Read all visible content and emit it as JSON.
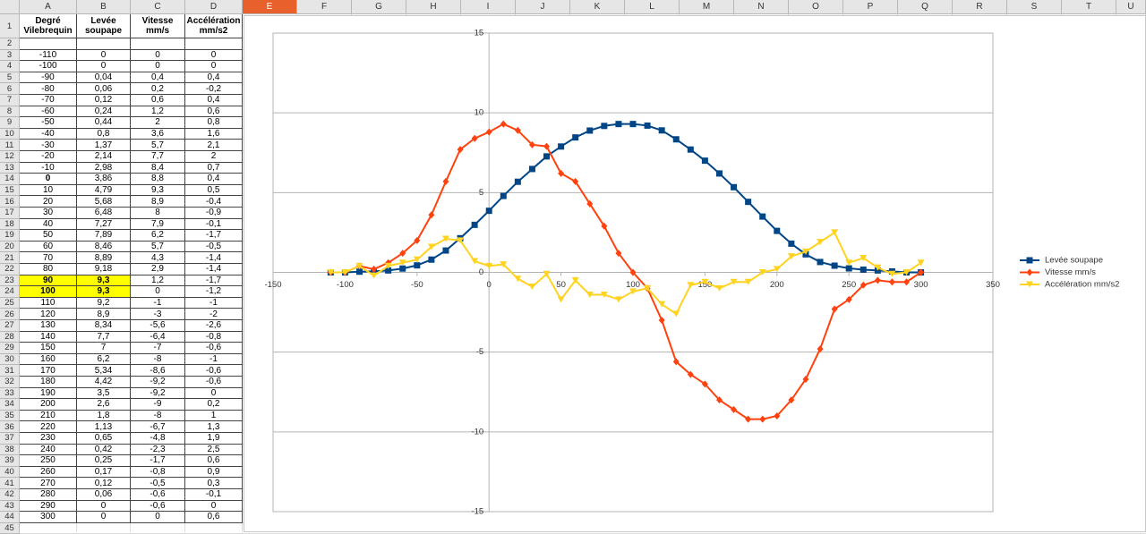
{
  "table": {
    "columns": [
      "A",
      "B",
      "C",
      "D",
      "E",
      "F",
      "G",
      "H",
      "I",
      "J",
      "K",
      "L",
      "M",
      "N",
      "O",
      "P",
      "Q",
      "R",
      "S",
      "T",
      "U"
    ],
    "row_numbers": [
      1,
      2,
      3,
      4,
      5,
      6,
      7,
      8,
      9,
      10,
      11,
      12,
      13,
      14,
      15,
      16,
      17,
      18,
      19,
      20,
      21,
      22,
      23,
      24,
      25,
      26,
      27,
      28,
      29,
      30,
      31,
      32,
      33,
      34,
      35,
      36,
      37,
      38,
      39,
      40,
      41,
      42,
      43,
      44,
      45
    ],
    "header": [
      [
        "Degré",
        "Vilebrequin"
      ],
      [
        "Levée",
        "soupape"
      ],
      [
        "Vitesse",
        "mm/s"
      ],
      [
        "Accélération",
        "mm/s2"
      ]
    ],
    "rows": [
      [
        "-110",
        "0",
        "0",
        "0"
      ],
      [
        "-100",
        "0",
        "0",
        "0"
      ],
      [
        "-90",
        "0,04",
        "0,4",
        "0,4"
      ],
      [
        "-80",
        "0,06",
        "0,2",
        "-0,2"
      ],
      [
        "-70",
        "0,12",
        "0,6",
        "0,4"
      ],
      [
        "-60",
        "0,24",
        "1,2",
        "0,6"
      ],
      [
        "-50",
        "0,44",
        "2",
        "0,8"
      ],
      [
        "-40",
        "0,8",
        "3,6",
        "1,6"
      ],
      [
        "-30",
        "1,37",
        "5,7",
        "2,1"
      ],
      [
        "-20",
        "2,14",
        "7,7",
        "2"
      ],
      [
        "-10",
        "2,98",
        "8,4",
        "0,7"
      ],
      [
        "0",
        "3,86",
        "8,8",
        "0,4"
      ],
      [
        "10",
        "4,79",
        "9,3",
        "0,5"
      ],
      [
        "20",
        "5,68",
        "8,9",
        "-0,4"
      ],
      [
        "30",
        "6,48",
        "8",
        "-0,9"
      ],
      [
        "40",
        "7,27",
        "7,9",
        "-0,1"
      ],
      [
        "50",
        "7,89",
        "6,2",
        "-1,7"
      ],
      [
        "60",
        "8,46",
        "5,7",
        "-0,5"
      ],
      [
        "70",
        "8,89",
        "4,3",
        "-1,4"
      ],
      [
        "80",
        "9,18",
        "2,9",
        "-1,4"
      ],
      [
        "90",
        "9,3",
        "1,2",
        "-1,7"
      ],
      [
        "100",
        "9,3",
        "0",
        "-1,2"
      ],
      [
        "110",
        "9,2",
        "-1",
        "-1"
      ],
      [
        "120",
        "8,9",
        "-3",
        "-2"
      ],
      [
        "130",
        "8,34",
        "-5,6",
        "-2,6"
      ],
      [
        "140",
        "7,7",
        "-6,4",
        "-0,8"
      ],
      [
        "150",
        "7",
        "-7",
        "-0,6"
      ],
      [
        "160",
        "6,2",
        "-8",
        "-1"
      ],
      [
        "170",
        "5,34",
        "-8,6",
        "-0,6"
      ],
      [
        "180",
        "4,42",
        "-9,2",
        "-0,6"
      ],
      [
        "190",
        "3,5",
        "-9,2",
        "0"
      ],
      [
        "200",
        "2,6",
        "-9",
        "0,2"
      ],
      [
        "210",
        "1,8",
        "-8",
        "1"
      ],
      [
        "220",
        "1,13",
        "-6,7",
        "1,3"
      ],
      [
        "230",
        "0,65",
        "-4,8",
        "1,9"
      ],
      [
        "240",
        "0,42",
        "-2,3",
        "2,5"
      ],
      [
        "250",
        "0,25",
        "-1,7",
        "0,6"
      ],
      [
        "260",
        "0,17",
        "-0,8",
        "0,9"
      ],
      [
        "270",
        "0,12",
        "-0,5",
        "0,3"
      ],
      [
        "280",
        "0,06",
        "-0,6",
        "-0,1"
      ],
      [
        "290",
        "0",
        "-0,6",
        "0"
      ],
      [
        "300",
        "0",
        "0",
        "0,6"
      ]
    ]
  },
  "chart_data": {
    "type": "line",
    "x": [
      -110,
      -100,
      -90,
      -80,
      -70,
      -60,
      -50,
      -40,
      -30,
      -20,
      -10,
      0,
      10,
      20,
      30,
      40,
      50,
      60,
      70,
      80,
      90,
      100,
      110,
      120,
      130,
      140,
      150,
      160,
      170,
      180,
      190,
      200,
      210,
      220,
      230,
      240,
      250,
      260,
      270,
      280,
      290,
      300
    ],
    "series": [
      {
        "name": "Levée soupape",
        "color": "#004586",
        "marker": "square",
        "values": [
          0,
          0,
          0.04,
          0.06,
          0.12,
          0.24,
          0.44,
          0.8,
          1.37,
          2.14,
          2.98,
          3.86,
          4.79,
          5.68,
          6.48,
          7.27,
          7.89,
          8.46,
          8.89,
          9.18,
          9.3,
          9.3,
          9.2,
          8.9,
          8.34,
          7.7,
          7,
          6.2,
          5.34,
          4.42,
          3.5,
          2.6,
          1.8,
          1.13,
          0.65,
          0.42,
          0.25,
          0.17,
          0.12,
          0.06,
          0,
          0
        ]
      },
      {
        "name": "Vitesse mm/s",
        "color": "#ff420e",
        "marker": "diamond",
        "values": [
          0,
          0,
          0.4,
          0.2,
          0.6,
          1.2,
          2,
          3.6,
          5.7,
          7.7,
          8.4,
          8.8,
          9.3,
          8.9,
          8,
          7.9,
          6.2,
          5.7,
          4.3,
          2.9,
          1.2,
          0,
          -1,
          -3,
          -5.6,
          -6.4,
          -7,
          -8,
          -8.6,
          -9.2,
          -9.2,
          -9,
          -8,
          -6.7,
          -4.8,
          -2.3,
          -1.7,
          -0.8,
          -0.5,
          -0.6,
          -0.6,
          0
        ]
      },
      {
        "name": "Accélération mm/s2",
        "color": "#ffd320",
        "marker": "triangle",
        "values": [
          0,
          0,
          0.4,
          -0.2,
          0.4,
          0.6,
          0.8,
          1.6,
          2.1,
          2,
          0.7,
          0.4,
          0.5,
          -0.4,
          -0.9,
          -0.1,
          -1.7,
          -0.5,
          -1.4,
          -1.4,
          -1.7,
          -1.2,
          -1,
          -2,
          -2.6,
          -0.8,
          -0.6,
          -1,
          -0.6,
          -0.6,
          0,
          0.2,
          1,
          1.3,
          1.9,
          2.5,
          0.6,
          0.9,
          0.3,
          -0.1,
          0,
          0.6
        ]
      }
    ],
    "xlim": [
      -150,
      350
    ],
    "xticks": [
      -150,
      -100,
      -50,
      0,
      50,
      100,
      150,
      200,
      250,
      300,
      350
    ],
    "ylim": [
      -15,
      15
    ],
    "yticks": [
      -15,
      -10,
      -5,
      0,
      5,
      10,
      15
    ],
    "grid": true,
    "legend": "right"
  }
}
